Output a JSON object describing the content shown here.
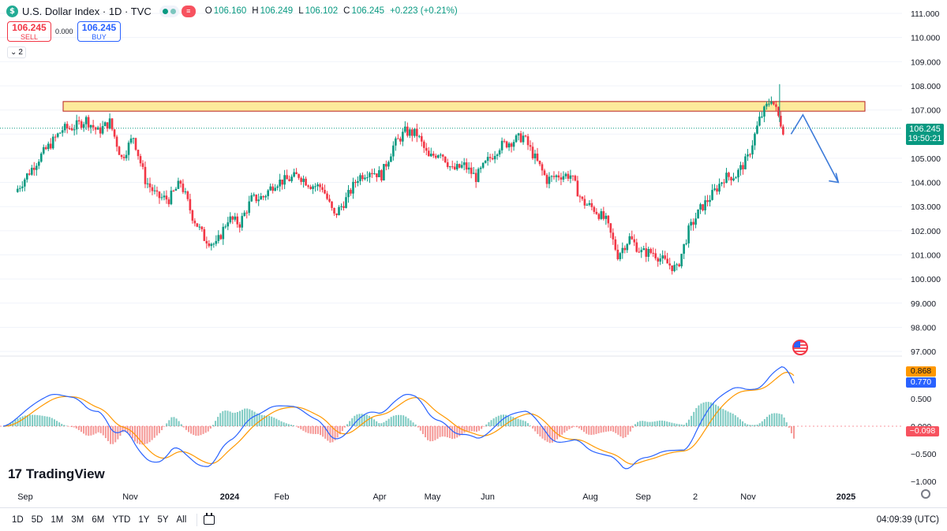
{
  "header": {
    "symbol_badge": "$",
    "title": "U.S. Dollar Index · 1D · TVC",
    "ohlc": {
      "o_label": "O",
      "o": "106.160",
      "h_label": "H",
      "h": "106.249",
      "l_label": "L",
      "l": "106.102",
      "c_label": "C",
      "c": "106.245",
      "change": "+0.223 (+0.21%)"
    },
    "sell_price": "106.245",
    "sell_label": "SELL",
    "buy_price": "106.245",
    "buy_label": "BUY",
    "spread": "0.000",
    "collapse_count": "2"
  },
  "price_axis": {
    "labels": [
      "111.000",
      "110.000",
      "109.000",
      "108.000",
      "107.000",
      "106.000",
      "105.000",
      "104.000",
      "103.000",
      "102.000",
      "101.000",
      "100.000",
      "99.000",
      "98.000",
      "97.000"
    ],
    "current_price": "106.245",
    "countdown": "19:50:21"
  },
  "indicator_axis": {
    "labels": [
      "0.500",
      "0.000",
      "−0.500",
      "−1.000"
    ],
    "macd_value": "0.868",
    "signal_value": "0.770",
    "hist_value": "−0.098"
  },
  "time_axis": [
    "Sep",
    "Nov",
    "2024",
    "Feb",
    "Apr",
    "May",
    "Jun",
    "Aug",
    "Sep",
    "2",
    "Nov",
    "2025"
  ],
  "toolbar": {
    "ranges": [
      "1D",
      "5D",
      "1M",
      "3M",
      "6M",
      "YTD",
      "1Y",
      "5Y",
      "All"
    ],
    "clock": "04:09:39 (UTC)"
  },
  "watermark": "TradingView",
  "colors": {
    "up": "#089981",
    "down": "#f23645",
    "zone_fill": "#fde68a",
    "zone_border": "#b71c1c",
    "arrow": "#3d7bd9",
    "macd": "#2962ff",
    "signal": "#ff9800"
  },
  "chart_data": {
    "type": "candlestick",
    "ylim": [
      96.6,
      111.2
    ],
    "series": [
      {
        "name": "U.S. Dollar Index",
        "x": [
          "2023-08-28",
          "2023-09-04",
          "2023-09-11",
          "2023-09-18",
          "2023-09-25",
          "2023-10-02",
          "2023-10-09",
          "2023-10-16",
          "2023-10-23",
          "2023-10-30",
          "2023-11-06",
          "2023-11-13",
          "2023-11-20",
          "2023-11-27",
          "2023-12-04",
          "2023-12-11",
          "2023-12-18",
          "2023-12-25",
          "2024-01-01",
          "2024-01-08",
          "2024-01-15",
          "2024-01-22",
          "2024-01-29",
          "2024-02-05",
          "2024-02-12",
          "2024-02-19",
          "2024-02-26",
          "2024-03-04",
          "2024-03-11",
          "2024-03-18",
          "2024-03-25",
          "2024-04-01",
          "2024-04-08",
          "2024-04-15",
          "2024-04-22",
          "2024-04-29",
          "2024-05-06",
          "2024-05-13",
          "2024-05-20",
          "2024-05-27",
          "2024-06-03",
          "2024-06-10",
          "2024-06-17",
          "2024-06-24",
          "2024-07-01",
          "2024-07-08",
          "2024-07-15",
          "2024-07-22",
          "2024-07-29",
          "2024-08-05",
          "2024-08-12",
          "2024-08-19",
          "2024-08-26",
          "2024-09-02",
          "2024-09-09",
          "2024-09-16",
          "2024-09-23",
          "2024-09-30",
          "2024-10-07",
          "2024-10-14",
          "2024-10-21",
          "2024-10-28",
          "2024-11-04",
          "2024-11-11",
          "2024-11-18",
          "2024-11-25"
        ],
        "close": [
          103.6,
          104.3,
          105.0,
          105.6,
          106.2,
          106.3,
          106.6,
          106.1,
          106.5,
          105.0,
          105.9,
          104.1,
          103.4,
          103.3,
          104.0,
          102.6,
          101.7,
          101.4,
          102.5,
          102.3,
          103.3,
          103.4,
          104.0,
          104.1,
          104.3,
          103.9,
          103.8,
          102.6,
          103.3,
          104.2,
          104.5,
          104.3,
          105.5,
          106.1,
          106.0,
          105.0,
          105.3,
          104.5,
          104.7,
          104.2,
          104.9,
          105.5,
          105.7,
          105.9,
          105.0,
          104.1,
          104.3,
          104.3,
          103.2,
          102.9,
          102.4,
          101.0,
          101.7,
          101.1,
          101.1,
          100.7,
          100.4,
          102.0,
          102.9,
          103.5,
          104.2,
          104.3,
          105.0,
          106.6,
          107.5,
          106.2
        ],
        "tooltip_only": false
      }
    ]
  },
  "annotations": {
    "resistance_zone": [
      106.95,
      107.35
    ],
    "forecast_path": [
      [
        106.0,
        "2024-11-29"
      ],
      [
        106.8,
        "2024-12-06"
      ],
      [
        104.0,
        "2024-12-27"
      ]
    ]
  }
}
